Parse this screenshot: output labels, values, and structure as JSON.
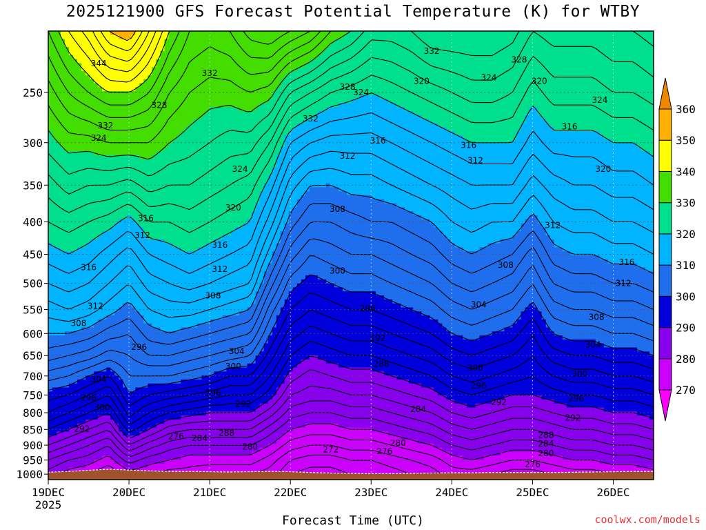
{
  "chart_data": {
    "type": "heatmap",
    "title": "2025121900 GFS Forecast Potential Temperature (K) for WTBY",
    "xlabel": "Forecast Time (UTC)",
    "ylabel": "",
    "x_ticks": [
      {
        "label": "19DEC",
        "sub": "2025",
        "t": 0
      },
      {
        "label": "20DEC",
        "sub": "",
        "t": 24
      },
      {
        "label": "21DEC",
        "sub": "",
        "t": 48
      },
      {
        "label": "22DEC",
        "sub": "",
        "t": 72
      },
      {
        "label": "23DEC",
        "sub": "",
        "t": 96
      },
      {
        "label": "24DEC",
        "sub": "",
        "t": 120
      },
      {
        "label": "25DEC",
        "sub": "",
        "t": 144
      },
      {
        "label": "26DEC",
        "sub": "",
        "t": 168
      }
    ],
    "x_range_hours": [
      0,
      180
    ],
    "y_ticks": [
      250,
      300,
      350,
      400,
      450,
      500,
      550,
      600,
      650,
      700,
      750,
      800,
      850,
      900,
      950,
      1000
    ],
    "y_range_hPa": [
      200,
      1020
    ],
    "y_scale": "log-pressure",
    "colorbar": {
      "levels": [
        270,
        280,
        290,
        300,
        310,
        320,
        330,
        340,
        350,
        360
      ],
      "colors": [
        "#ff00ff",
        "#cc00ff",
        "#8800ee",
        "#0000dd",
        "#1e6eee",
        "#00b4ff",
        "#00e08c",
        "#44dd00",
        "#ffff00",
        "#ffb000",
        "#ee8800"
      ]
    },
    "times_hours": [
      0,
      6,
      12,
      18,
      24,
      30,
      36,
      42,
      48,
      54,
      60,
      66,
      72,
      78,
      84,
      90,
      96,
      102,
      108,
      114,
      120,
      126,
      132,
      138,
      144,
      150,
      156,
      162,
      168,
      174,
      180
    ],
    "pressure_levels_hPa": [
      1000,
      950,
      900,
      850,
      800,
      750,
      700,
      650,
      600,
      550,
      500,
      450,
      400,
      350,
      300,
      250,
      200
    ],
    "theta_profiles_K": [
      [
        281,
        284,
        288,
        292,
        296,
        299,
        303,
        307,
        310,
        313,
        316,
        319,
        322,
        325,
        329,
        333,
        338
      ],
      [
        279,
        282,
        286,
        290,
        294,
        298,
        302,
        306,
        310,
        314,
        317,
        320,
        323,
        327,
        331,
        336,
        342
      ],
      [
        278,
        281,
        284,
        288,
        292,
        296,
        300,
        305,
        309,
        313,
        316,
        319,
        322,
        326,
        331,
        338,
        345
      ],
      [
        276,
        279,
        282,
        286,
        290,
        294,
        298,
        303,
        307,
        311,
        314,
        317,
        321,
        326,
        332,
        340,
        350
      ],
      [
        279,
        283,
        288,
        293,
        297,
        300,
        302,
        304,
        306,
        309,
        312,
        315,
        319,
        325,
        332,
        340,
        352
      ],
      [
        278,
        281,
        285,
        290,
        294,
        298,
        302,
        306,
        309,
        312,
        315,
        318,
        322,
        327,
        332,
        338,
        346
      ],
      [
        277,
        280,
        283,
        287,
        292,
        297,
        302,
        306,
        310,
        313,
        316,
        319,
        322,
        326,
        330,
        334,
        340
      ],
      [
        277,
        279,
        282,
        286,
        291,
        296,
        301,
        305,
        309,
        313,
        317,
        320,
        323,
        326,
        329,
        332,
        336
      ],
      [
        276,
        279,
        282,
        286,
        290,
        295,
        300,
        304,
        308,
        312,
        316,
        319,
        322,
        325,
        328,
        331,
        335
      ],
      [
        276,
        279,
        282,
        286,
        290,
        294,
        298,
        303,
        307,
        311,
        315,
        318,
        321,
        324,
        327,
        331,
        336
      ],
      [
        276,
        279,
        282,
        286,
        290,
        294,
        298,
        302,
        306,
        310,
        314,
        317,
        320,
        323,
        327,
        332,
        339
      ],
      [
        275,
        277,
        280,
        283,
        287,
        291,
        294,
        297,
        300,
        303,
        307,
        311,
        315,
        319,
        324,
        331,
        340
      ],
      [
        272,
        274,
        277,
        280,
        283,
        286,
        289,
        292,
        295,
        298,
        301,
        305,
        309,
        313,
        318,
        326,
        338
      ],
      [
        271,
        273,
        276,
        279,
        282,
        285,
        287,
        290,
        293,
        296,
        299,
        302,
        306,
        310,
        316,
        324,
        336
      ],
      [
        271,
        273,
        276,
        279,
        282,
        285,
        288,
        291,
        294,
        297,
        300,
        303,
        306,
        310,
        315,
        322,
        332
      ],
      [
        272,
        274,
        277,
        280,
        283,
        286,
        289,
        292,
        295,
        298,
        301,
        304,
        307,
        311,
        315,
        321,
        330
      ],
      [
        272,
        274,
        277,
        280,
        283,
        286,
        289,
        292,
        295,
        298,
        301,
        304,
        308,
        311,
        315,
        320,
        327
      ],
      [
        273,
        275,
        278,
        281,
        284,
        287,
        290,
        293,
        296,
        299,
        302,
        305,
        308,
        312,
        316,
        321,
        327
      ],
      [
        274,
        276,
        279,
        282,
        285,
        288,
        291,
        294,
        297,
        300,
        303,
        306,
        309,
        313,
        317,
        322,
        328
      ],
      [
        275,
        277,
        280,
        283,
        286,
        289,
        292,
        295,
        298,
        301,
        304,
        307,
        310,
        314,
        318,
        323,
        330
      ],
      [
        277,
        279,
        282,
        285,
        288,
        291,
        294,
        297,
        300,
        303,
        306,
        309,
        312,
        315,
        319,
        324,
        330
      ],
      [
        277,
        280,
        283,
        286,
        289,
        292,
        295,
        298,
        301,
        304,
        307,
        310,
        313,
        316,
        320,
        325,
        330
      ],
      [
        276,
        279,
        282,
        285,
        288,
        291,
        294,
        297,
        300,
        303,
        306,
        309,
        312,
        316,
        320,
        325,
        330
      ],
      [
        275,
        278,
        281,
        284,
        287,
        290,
        293,
        296,
        299,
        302,
        305,
        308,
        312,
        316,
        320,
        324,
        329
      ],
      [
        275,
        278,
        281,
        284,
        287,
        290,
        292,
        294,
        296,
        299,
        302,
        305,
        309,
        313,
        317,
        321,
        326
      ],
      [
        276,
        279,
        282,
        285,
        288,
        291,
        294,
        297,
        300,
        303,
        306,
        309,
        312,
        315,
        319,
        323,
        327
      ],
      [
        277,
        280,
        283,
        286,
        289,
        292,
        295,
        298,
        301,
        304,
        307,
        310,
        313,
        316,
        319,
        323,
        327
      ],
      [
        277,
        280,
        283,
        286,
        289,
        292,
        295,
        298,
        301,
        304,
        307,
        310,
        313,
        316,
        319,
        323,
        327
      ],
      [
        278,
        281,
        284,
        287,
        290,
        293,
        296,
        299,
        302,
        305,
        308,
        311,
        314,
        317,
        320,
        324,
        328
      ],
      [
        278,
        281,
        284,
        287,
        290,
        293,
        296,
        299,
        302,
        305,
        308,
        311,
        314,
        317,
        320,
        324,
        328
      ],
      [
        279,
        282,
        285,
        288,
        291,
        294,
        297,
        300,
        303,
        306,
        309,
        312,
        315,
        318,
        321,
        325,
        329
      ]
    ],
    "ground_pressure_hPa": [
      993,
      990,
      986,
      982,
      985,
      988,
      990,
      990,
      991,
      992,
      991,
      990,
      991,
      994,
      996,
      997,
      998,
      998,
      997,
      996,
      995,
      995,
      994,
      994,
      994,
      994,
      993,
      992,
      991,
      990,
      990
    ],
    "contour_labels": [
      {
        "text": "344",
        "t": 15,
        "p": 225
      },
      {
        "text": "332",
        "t": 17,
        "p": 282
      },
      {
        "text": "324",
        "t": 15,
        "p": 295
      },
      {
        "text": "328",
        "t": 33,
        "p": 262
      },
      {
        "text": "332",
        "t": 48,
        "p": 233
      },
      {
        "text": "324",
        "t": 57,
        "p": 330
      },
      {
        "text": "320",
        "t": 55,
        "p": 380
      },
      {
        "text": "332",
        "t": 78,
        "p": 275
      },
      {
        "text": "328",
        "t": 89,
        "p": 245
      },
      {
        "text": "324",
        "t": 93,
        "p": 250
      },
      {
        "text": "320",
        "t": 111,
        "p": 240
      },
      {
        "text": "332",
        "t": 114,
        "p": 215
      },
      {
        "text": "328",
        "t": 140,
        "p": 222
      },
      {
        "text": "324",
        "t": 131,
        "p": 237
      },
      {
        "text": "320",
        "t": 146,
        "p": 240
      },
      {
        "text": "324",
        "t": 164,
        "p": 257
      },
      {
        "text": "316",
        "t": 155,
        "p": 283
      },
      {
        "text": "320",
        "t": 165,
        "p": 330
      },
      {
        "text": "316",
        "t": 98,
        "p": 298
      },
      {
        "text": "312",
        "t": 89,
        "p": 315
      },
      {
        "text": "316",
        "t": 125,
        "p": 303
      },
      {
        "text": "312",
        "t": 127,
        "p": 320
      },
      {
        "text": "308",
        "t": 86,
        "p": 382
      },
      {
        "text": "316",
        "t": 29,
        "p": 395
      },
      {
        "text": "312",
        "t": 28,
        "p": 420
      },
      {
        "text": "316",
        "t": 51,
        "p": 435
      },
      {
        "text": "312",
        "t": 51,
        "p": 475
      },
      {
        "text": "308",
        "t": 49,
        "p": 523
      },
      {
        "text": "316",
        "t": 12,
        "p": 472
      },
      {
        "text": "312",
        "t": 14,
        "p": 543
      },
      {
        "text": "308",
        "t": 9,
        "p": 578
      },
      {
        "text": "304",
        "t": 56,
        "p": 640
      },
      {
        "text": "300",
        "t": 55,
        "p": 676
      },
      {
        "text": "296",
        "t": 49,
        "p": 745
      },
      {
        "text": "292",
        "t": 58,
        "p": 775
      },
      {
        "text": "304",
        "t": 15,
        "p": 708
      },
      {
        "text": "296",
        "t": 12,
        "p": 758
      },
      {
        "text": "300",
        "t": 16,
        "p": 785
      },
      {
        "text": "292",
        "t": 10,
        "p": 848
      },
      {
        "text": "296",
        "t": 27,
        "p": 630
      },
      {
        "text": "276",
        "t": 38,
        "p": 872
      },
      {
        "text": "284",
        "t": 45,
        "p": 878
      },
      {
        "text": "288",
        "t": 53,
        "p": 861
      },
      {
        "text": "280",
        "t": 60,
        "p": 905
      },
      {
        "text": "300",
        "t": 86,
        "p": 478
      },
      {
        "text": "296",
        "t": 95,
        "p": 548
      },
      {
        "text": "292",
        "t": 98,
        "p": 610
      },
      {
        "text": "288",
        "t": 99,
        "p": 670
      },
      {
        "text": "284",
        "t": 110,
        "p": 790
      },
      {
        "text": "280",
        "t": 104,
        "p": 893
      },
      {
        "text": "276",
        "t": 100,
        "p": 920
      },
      {
        "text": "272",
        "t": 84,
        "p": 915
      },
      {
        "text": "304",
        "t": 128,
        "p": 540
      },
      {
        "text": "308",
        "t": 136,
        "p": 468
      },
      {
        "text": "312",
        "t": 150,
        "p": 405
      },
      {
        "text": "300",
        "t": 127,
        "p": 680
      },
      {
        "text": "296",
        "t": 128,
        "p": 725
      },
      {
        "text": "292",
        "t": 134,
        "p": 770
      },
      {
        "text": "304",
        "t": 162,
        "p": 625
      },
      {
        "text": "300",
        "t": 158,
        "p": 695
      },
      {
        "text": "296",
        "t": 157,
        "p": 760
      },
      {
        "text": "292",
        "t": 156,
        "p": 815
      },
      {
        "text": "288",
        "t": 148,
        "p": 868
      },
      {
        "text": "284",
        "t": 148,
        "p": 895
      },
      {
        "text": "280",
        "t": 148,
        "p": 927
      },
      {
        "text": "276",
        "t": 144,
        "p": 965
      },
      {
        "text": "316",
        "t": 172,
        "p": 463
      },
      {
        "text": "312",
        "t": 171,
        "p": 500
      },
      {
        "text": "308",
        "t": 163,
        "p": 565
      }
    ]
  },
  "credit": "coolwx.com/models"
}
